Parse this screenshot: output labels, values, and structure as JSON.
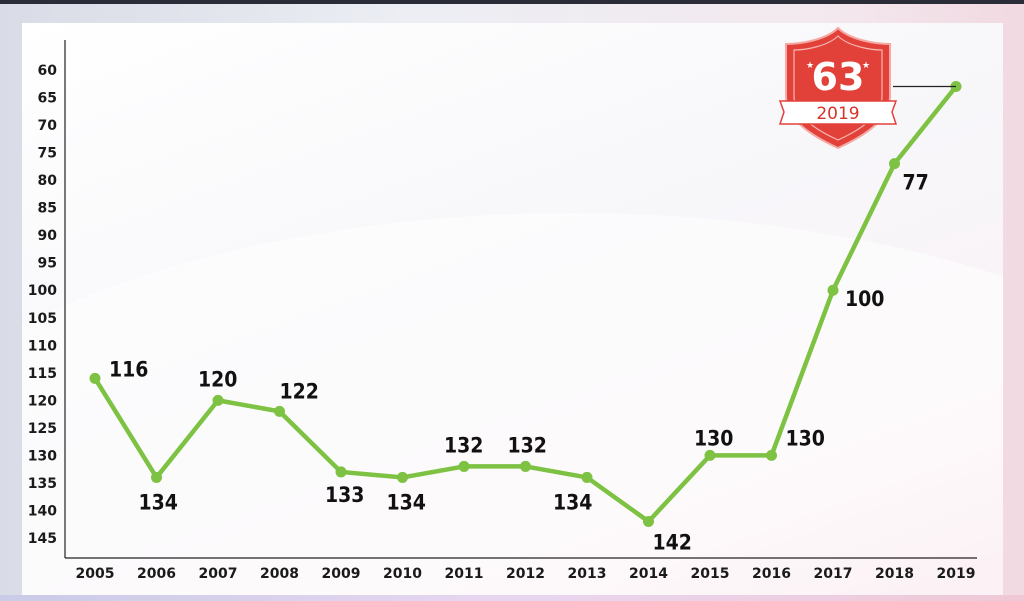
{
  "colors": {
    "line": "#7dc242",
    "badge": "#e2413a",
    "axis": "#222222"
  },
  "badge": {
    "value": "63",
    "year": "2019",
    "icon": "shield-badge-icon"
  },
  "chart_data": {
    "type": "line",
    "title": "",
    "xlabel": "",
    "ylabel": "",
    "y_inverted": true,
    "ylim": [
      145,
      60
    ],
    "yticks": [
      60,
      65,
      70,
      75,
      80,
      85,
      90,
      95,
      100,
      105,
      110,
      115,
      120,
      125,
      130,
      135,
      140,
      145
    ],
    "categories": [
      "2005",
      "2006",
      "2007",
      "2008",
      "2009",
      "2010",
      "2011",
      "2012",
      "2013",
      "2014",
      "2015",
      "2016",
      "2017",
      "2018",
      "2019"
    ],
    "values": [
      116,
      134,
      120,
      122,
      133,
      134,
      132,
      132,
      134,
      142,
      130,
      130,
      100,
      77,
      63
    ],
    "data_labels": [
      "116",
      "134",
      "120",
      "122",
      "133",
      "134",
      "132",
      "132",
      "134",
      "142",
      "130",
      "130",
      "100",
      "77",
      null
    ],
    "grid": false,
    "legend": "none"
  }
}
